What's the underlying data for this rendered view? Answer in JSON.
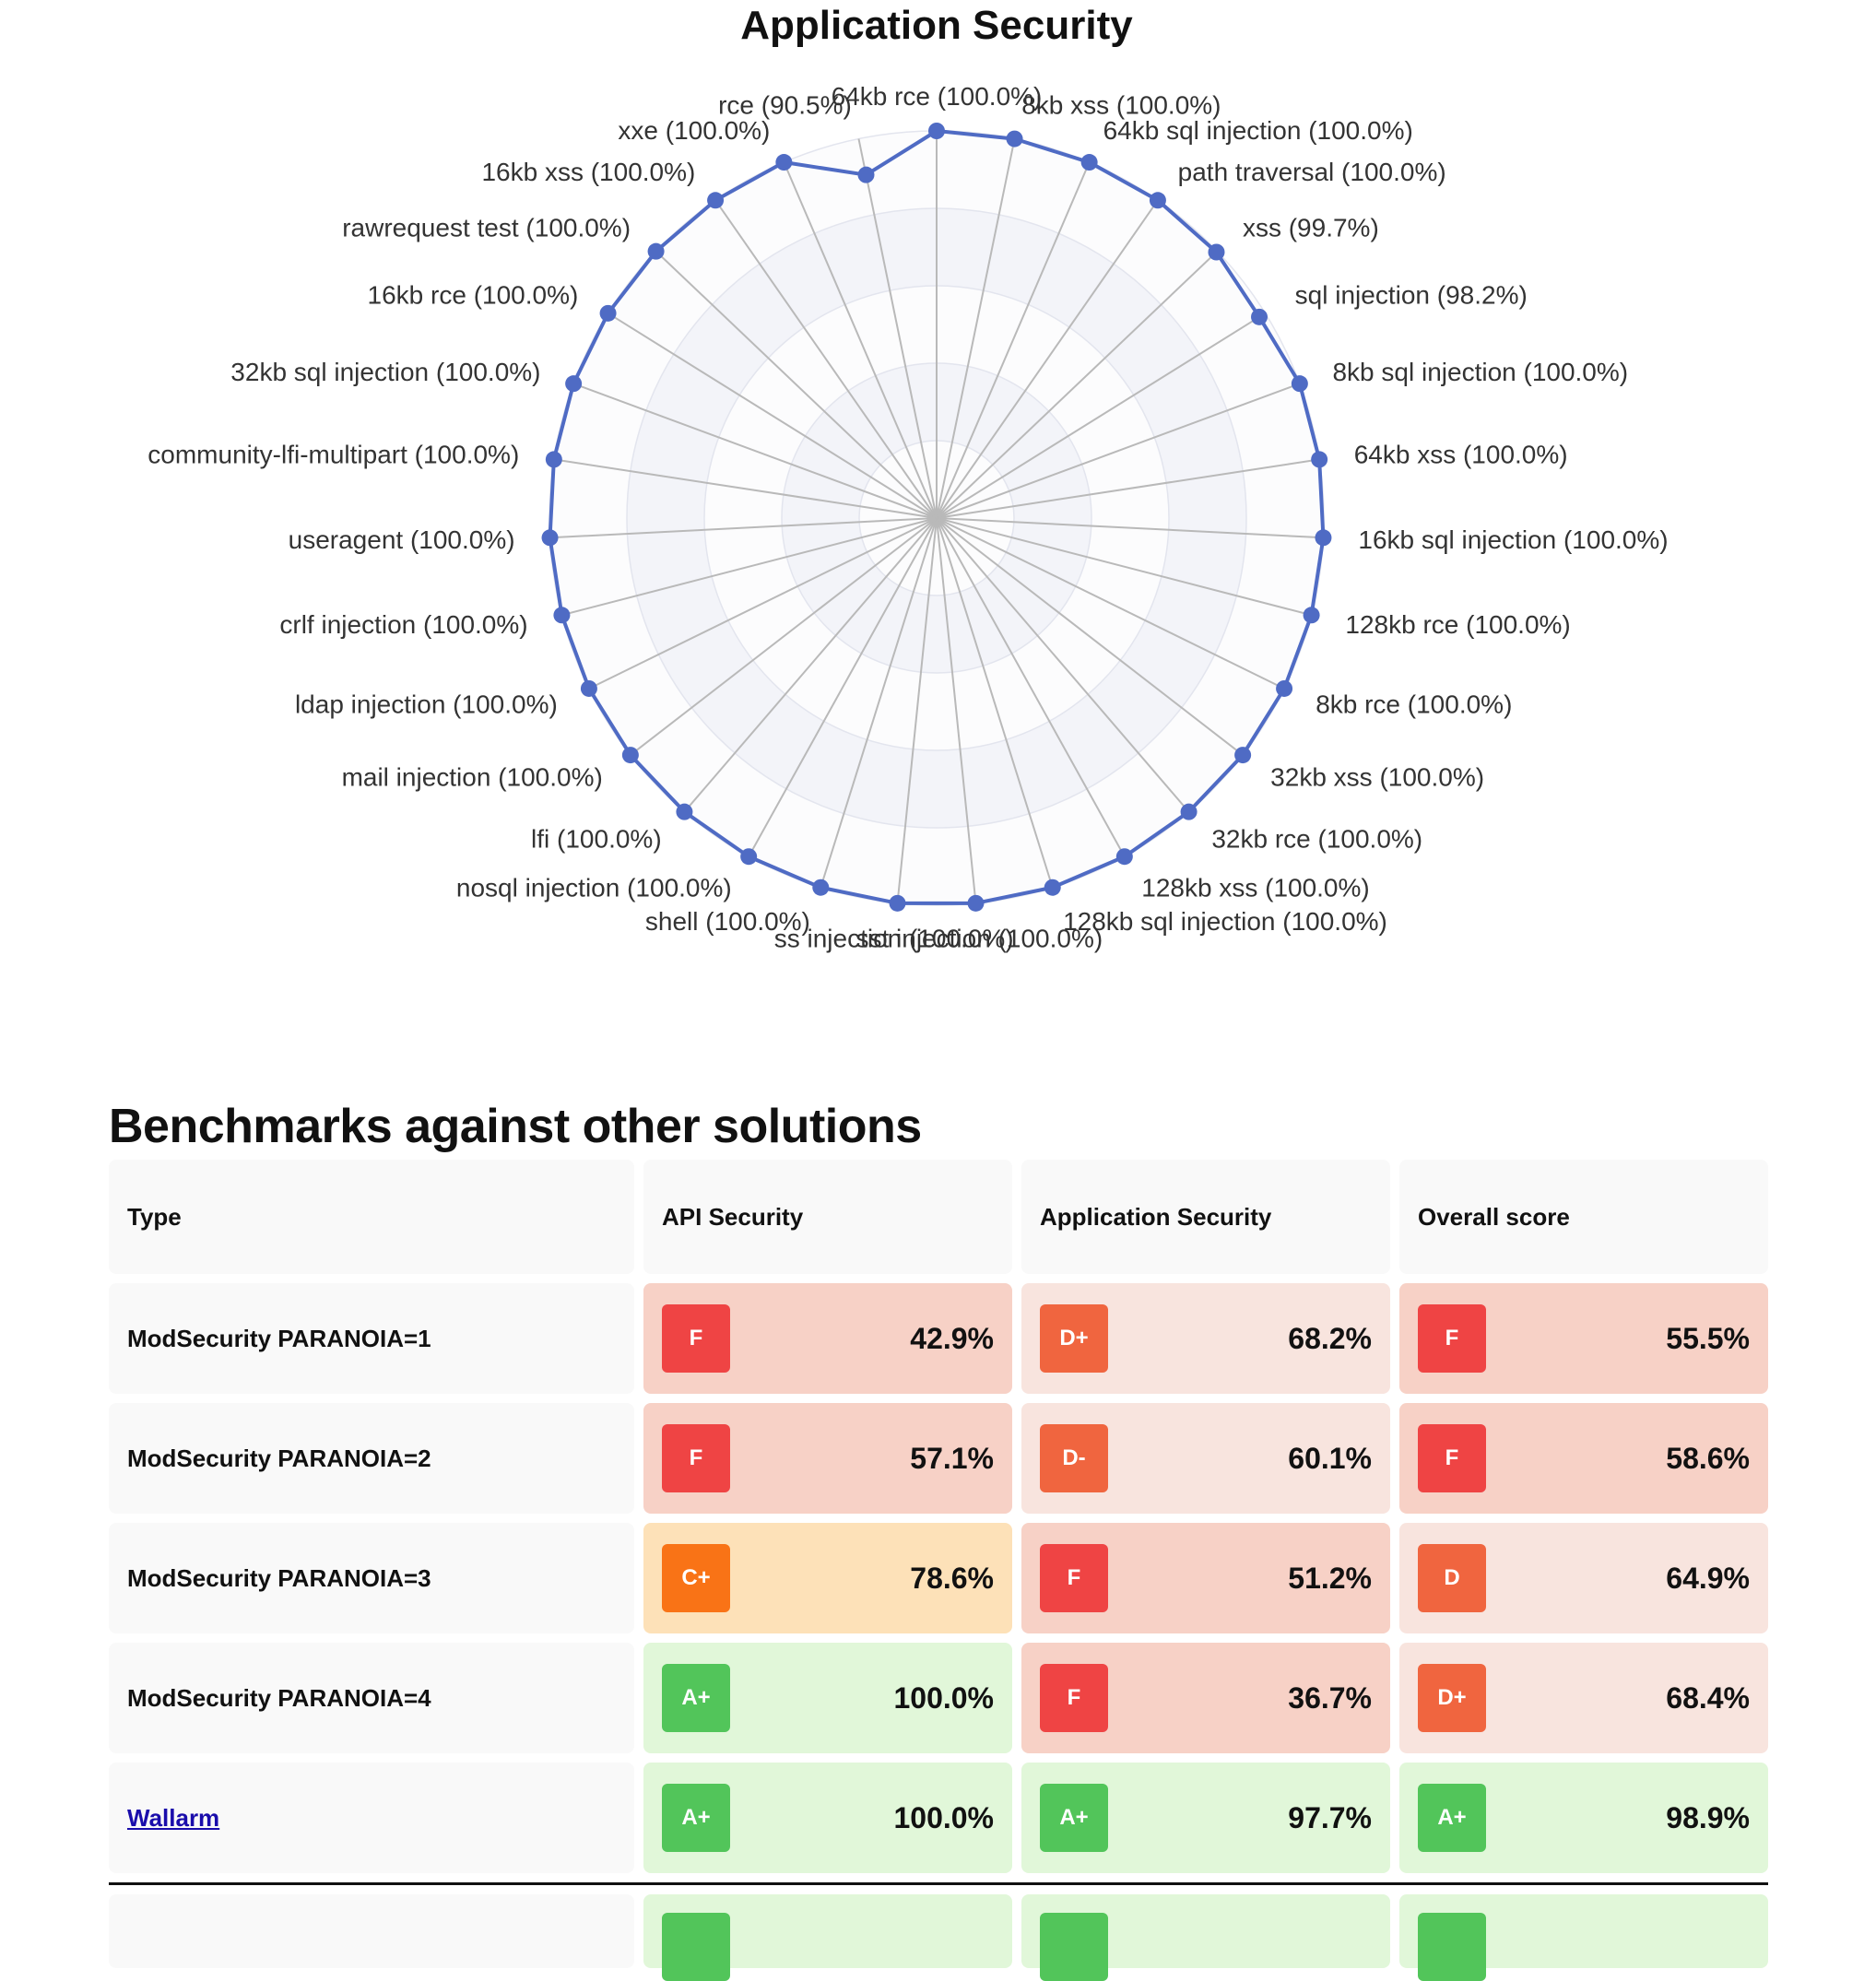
{
  "chart_data": {
    "type": "radar",
    "title": "Application Security",
    "rlim": [
      0,
      100
    ],
    "series": [
      {
        "points": [
          {
            "label": "64kb rce (100.0%)",
            "value": 100.0
          },
          {
            "label": "8kb xss (100.0%)",
            "value": 100.0
          },
          {
            "label": "64kb sql injection (100.0%)",
            "value": 100.0
          },
          {
            "label": "path traversal (100.0%)",
            "value": 100.0
          },
          {
            "label": "xss (99.7%)",
            "value": 99.7
          },
          {
            "label": "sql injection (98.2%)",
            "value": 98.2
          },
          {
            "label": "8kb sql injection (100.0%)",
            "value": 100.0
          },
          {
            "label": "64kb xss (100.0%)",
            "value": 100.0
          },
          {
            "label": "16kb sql injection (100.0%)",
            "value": 100.0
          },
          {
            "label": "128kb rce (100.0%)",
            "value": 100.0
          },
          {
            "label": "8kb rce (100.0%)",
            "value": 100.0
          },
          {
            "label": "32kb xss (100.0%)",
            "value": 100.0
          },
          {
            "label": "32kb rce (100.0%)",
            "value": 100.0
          },
          {
            "label": "128kb xss (100.0%)",
            "value": 100.0
          },
          {
            "label": "128kb sql injection (100.0%)",
            "value": 100.0
          },
          {
            "label": "sst injection (100.0%)",
            "value": 100.0
          },
          {
            "label": "ss injection (100.0%)",
            "value": 100.0
          },
          {
            "label": "shell (100.0%)",
            "value": 100.0
          },
          {
            "label": "nosql injection (100.0%)",
            "value": 100.0
          },
          {
            "label": "lfi (100.0%)",
            "value": 100.0
          },
          {
            "label": "mail injection (100.0%)",
            "value": 100.0
          },
          {
            "label": "ldap injection (100.0%)",
            "value": 100.0
          },
          {
            "label": "crlf injection (100.0%)",
            "value": 100.0
          },
          {
            "label": "useragent (100.0%)",
            "value": 100.0
          },
          {
            "label": "community-lfi-multipart (100.0%)",
            "value": 100.0
          },
          {
            "label": "32kb sql injection (100.0%)",
            "value": 100.0
          },
          {
            "label": "16kb rce (100.0%)",
            "value": 100.0
          },
          {
            "label": "rawrequest test (100.0%)",
            "value": 100.0
          },
          {
            "label": "16kb xss (100.0%)",
            "value": 100.0
          },
          {
            "label": "xxe (100.0%)",
            "value": 100.0
          },
          {
            "label": "rce (90.5%)",
            "value": 90.5
          }
        ]
      }
    ],
    "colors": {
      "line": "#4f6bc4",
      "spoke": "#b9b9b9",
      "band": "#f3f4f9"
    }
  },
  "benchmarks": {
    "title": "Benchmarks against other solutions",
    "headers": [
      "Type",
      "API Security",
      "Application Security",
      "Overall score"
    ],
    "rows": [
      {
        "type": "ModSecurity PARANOIA=1",
        "is_link": false,
        "scores": [
          {
            "grade": "F",
            "pct": "42.9%"
          },
          {
            "grade": "D+",
            "pct": "68.2%"
          },
          {
            "grade": "F",
            "pct": "55.5%"
          }
        ]
      },
      {
        "type": "ModSecurity PARANOIA=2",
        "is_link": false,
        "scores": [
          {
            "grade": "F",
            "pct": "57.1%"
          },
          {
            "grade": "D-",
            "pct": "60.1%"
          },
          {
            "grade": "F",
            "pct": "58.6%"
          }
        ]
      },
      {
        "type": "ModSecurity PARANOIA=3",
        "is_link": false,
        "scores": [
          {
            "grade": "C+",
            "pct": "78.6%"
          },
          {
            "grade": "F",
            "pct": "51.2%"
          },
          {
            "grade": "D",
            "pct": "64.9%"
          }
        ]
      },
      {
        "type": "ModSecurity PARANOIA=4",
        "is_link": false,
        "scores": [
          {
            "grade": "A+",
            "pct": "100.0%"
          },
          {
            "grade": "F",
            "pct": "36.7%"
          },
          {
            "grade": "D+",
            "pct": "68.4%"
          }
        ]
      },
      {
        "type": "Wallarm",
        "is_link": true,
        "scores": [
          {
            "grade": "A+",
            "pct": "100.0%"
          },
          {
            "grade": "A+",
            "pct": "97.7%"
          },
          {
            "grade": "A+",
            "pct": "98.9%"
          }
        ]
      }
    ],
    "grade_colors": {
      "F": {
        "badge": "#ef4444",
        "bg": "#f7d1c6"
      },
      "D-": {
        "badge": "#f0653f",
        "bg": "#f8e4de"
      },
      "D": {
        "badge": "#f0653f",
        "bg": "#f8e4de"
      },
      "D+": {
        "badge": "#f0653f",
        "bg": "#f8e4de"
      },
      "C+": {
        "badge": "#f97316",
        "bg": "#fde1b8"
      },
      "A+": {
        "badge": "#52c55a",
        "bg": "#e1f7d9"
      }
    }
  }
}
